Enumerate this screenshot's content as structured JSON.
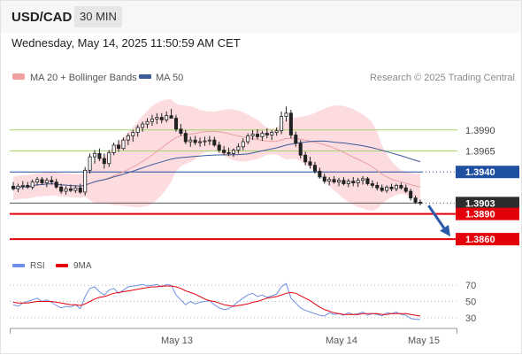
{
  "header": {
    "symbol": "USD/CAD",
    "timeframe": "30 MIN"
  },
  "date_line": "Wednesday, May 14, 2025 11:50:59 AM CET",
  "legend": {
    "bb": "MA 20 + Bollinger Bands",
    "ma50": "MA 50",
    "credit": "Research © 2025 Trading Central"
  },
  "rsi_legend": {
    "rsi": "RSI",
    "ma": "9MA"
  },
  "colors": {
    "bb_fill": "#fcd8dc",
    "ma20": "#e7a0a0",
    "ma50": "#3d5a98",
    "candle": "#222222",
    "green_level": "#a6d26b",
    "blue_level": "#1f4fa0",
    "red_level": "#e3000b",
    "rsi": "#6f8fe6",
    "rsi_ma": "#e3000b",
    "arrow": "#2b5aa6",
    "last_box": "#2d2d2d"
  },
  "chart_data": {
    "type": "candlestick",
    "x_ticks": [
      "May 13",
      "May 14",
      "May 15"
    ],
    "y_range": [
      1.3838,
      1.4033
    ],
    "candles": [
      [
        1.3923,
        1.3928,
        1.3918,
        1.392
      ],
      [
        1.392,
        1.3926,
        1.3916,
        1.3923
      ],
      [
        1.3923,
        1.3929,
        1.3919,
        1.3924
      ],
      [
        1.3924,
        1.3928,
        1.392,
        1.3922
      ],
      [
        1.3922,
        1.3931,
        1.3919,
        1.3928
      ],
      [
        1.3928,
        1.3934,
        1.3924,
        1.3931
      ],
      [
        1.3931,
        1.3934,
        1.3925,
        1.3927
      ],
      [
        1.3927,
        1.3933,
        1.3922,
        1.393
      ],
      [
        1.393,
        1.3935,
        1.3925,
        1.3928
      ],
      [
        1.3928,
        1.3932,
        1.392,
        1.3922
      ],
      [
        1.3922,
        1.3926,
        1.3914,
        1.3917
      ],
      [
        1.3917,
        1.3923,
        1.3913,
        1.392
      ],
      [
        1.392,
        1.3925,
        1.3916,
        1.3918
      ],
      [
        1.3918,
        1.3924,
        1.3915,
        1.3921
      ],
      [
        1.3921,
        1.3926,
        1.3914,
        1.3916
      ],
      [
        1.3916,
        1.3946,
        1.3912,
        1.3942
      ],
      [
        1.3942,
        1.3962,
        1.3938,
        1.3958
      ],
      [
        1.3958,
        1.3966,
        1.395,
        1.3962
      ],
      [
        1.3962,
        1.3968,
        1.3953,
        1.3956
      ],
      [
        1.3956,
        1.3962,
        1.3944,
        1.395
      ],
      [
        1.395,
        1.3966,
        1.3946,
        1.3963
      ],
      [
        1.3963,
        1.3975,
        1.396,
        1.3972
      ],
      [
        1.3972,
        1.3978,
        1.3964,
        1.3968
      ],
      [
        1.3968,
        1.3981,
        1.3966,
        1.3978
      ],
      [
        1.3978,
        1.3986,
        1.3972,
        1.3983
      ],
      [
        1.3983,
        1.399,
        1.3976,
        1.3987
      ],
      [
        1.3987,
        1.3996,
        1.3982,
        1.3993
      ],
      [
        1.3993,
        1.4,
        1.3988,
        1.3997
      ],
      [
        1.3997,
        1.4004,
        1.3992,
        1.4
      ],
      [
        1.4,
        1.4008,
        1.3995,
        1.4003
      ],
      [
        1.4003,
        1.401,
        1.3997,
        1.4005
      ],
      [
        1.4005,
        1.401,
        1.3998,
        1.4002
      ],
      [
        1.4002,
        1.4012,
        1.3999,
        1.4007
      ],
      [
        1.4007,
        1.4015,
        1.4004,
        1.4004
      ],
      [
        1.4004,
        1.4008,
        1.3988,
        1.3991
      ],
      [
        1.3991,
        1.3997,
        1.3983,
        1.3986
      ],
      [
        1.3986,
        1.399,
        1.3973,
        1.3976
      ],
      [
        1.3976,
        1.3982,
        1.397,
        1.3978
      ],
      [
        1.3978,
        1.3983,
        1.3972,
        1.3975
      ],
      [
        1.3975,
        1.3981,
        1.397,
        1.3976
      ],
      [
        1.3976,
        1.3982,
        1.3971,
        1.3977
      ],
      [
        1.3977,
        1.3983,
        1.3972,
        1.3978
      ],
      [
        1.3978,
        1.3982,
        1.397,
        1.3972
      ],
      [
        1.3972,
        1.3976,
        1.3963,
        1.3966
      ],
      [
        1.3966,
        1.3971,
        1.396,
        1.3963
      ],
      [
        1.3963,
        1.3969,
        1.3959,
        1.3962
      ],
      [
        1.3962,
        1.3968,
        1.3958,
        1.3966
      ],
      [
        1.3966,
        1.3974,
        1.3962,
        1.397
      ],
      [
        1.397,
        1.398,
        1.3966,
        1.3976
      ],
      [
        1.3976,
        1.3986,
        1.3973,
        1.3983
      ],
      [
        1.3983,
        1.399,
        1.3978,
        1.3985
      ],
      [
        1.3985,
        1.3991,
        1.3979,
        1.3982
      ],
      [
        1.3982,
        1.3989,
        1.3977,
        1.3986
      ],
      [
        1.3986,
        1.3992,
        1.398,
        1.3984
      ],
      [
        1.3984,
        1.399,
        1.3978,
        1.3987
      ],
      [
        1.3987,
        1.3993,
        1.3983,
        1.3989
      ],
      [
        1.3989,
        1.4012,
        1.3985,
        1.4006
      ],
      [
        1.4006,
        1.4018,
        1.4,
        1.401
      ],
      [
        1.401,
        1.4014,
        1.398,
        1.3984
      ],
      [
        1.3984,
        1.3988,
        1.397,
        1.3974
      ],
      [
        1.3974,
        1.3978,
        1.3956,
        1.396
      ],
      [
        1.396,
        1.3964,
        1.3948,
        1.3952
      ],
      [
        1.3952,
        1.3958,
        1.3944,
        1.3948
      ],
      [
        1.3948,
        1.3952,
        1.3938,
        1.3941
      ],
      [
        1.3941,
        1.3945,
        1.3932,
        1.3934
      ],
      [
        1.3934,
        1.3938,
        1.3926,
        1.3929
      ],
      [
        1.3929,
        1.3934,
        1.3924,
        1.3931
      ],
      [
        1.3931,
        1.3935,
        1.3926,
        1.3928
      ],
      [
        1.3928,
        1.3933,
        1.3923,
        1.393
      ],
      [
        1.393,
        1.3934,
        1.3924,
        1.3926
      ],
      [
        1.3926,
        1.3932,
        1.3922,
        1.3929
      ],
      [
        1.3929,
        1.3934,
        1.3923,
        1.3927
      ],
      [
        1.3927,
        1.3933,
        1.3922,
        1.393
      ],
      [
        1.393,
        1.3935,
        1.3925,
        1.3932
      ],
      [
        1.3932,
        1.3934,
        1.3924,
        1.3926
      ],
      [
        1.3926,
        1.393,
        1.3921,
        1.3924
      ],
      [
        1.3924,
        1.3928,
        1.3918,
        1.3921
      ],
      [
        1.3921,
        1.3925,
        1.3916,
        1.3918
      ],
      [
        1.3918,
        1.3924,
        1.3915,
        1.3922
      ],
      [
        1.3922,
        1.3926,
        1.3917,
        1.392
      ],
      [
        1.392,
        1.3926,
        1.3917,
        1.3924
      ],
      [
        1.3924,
        1.3927,
        1.3919,
        1.3921
      ],
      [
        1.3921,
        1.3925,
        1.3915,
        1.3917
      ],
      [
        1.3917,
        1.392,
        1.3906,
        1.3909
      ],
      [
        1.3909,
        1.3912,
        1.3902,
        1.3904
      ],
      [
        1.3904,
        1.3907,
        1.39,
        1.3903
      ]
    ],
    "levels": [
      {
        "value": 1.399,
        "label": "1.3990",
        "style": "green"
      },
      {
        "value": 1.3965,
        "label": "1.3965",
        "style": "green"
      },
      {
        "value": 1.394,
        "label": "1.3940",
        "style": "blue"
      },
      {
        "value": 1.3903,
        "label": "1.3903",
        "style": "last"
      },
      {
        "value": 1.389,
        "label": "1.3890",
        "style": "red"
      },
      {
        "value": 1.386,
        "label": "1.3860",
        "style": "red"
      }
    ],
    "arrow": {
      "from_candle": 86,
      "from_price": 1.3902,
      "to_price": 1.386
    },
    "rsi": {
      "y_range": [
        20,
        80
      ],
      "ticks": [
        70,
        50,
        30
      ],
      "values": [
        46,
        44,
        48,
        50,
        52,
        54,
        50,
        52,
        49,
        45,
        42,
        44,
        43,
        46,
        41,
        56,
        66,
        68,
        62,
        58,
        64,
        66,
        60,
        64,
        68,
        69,
        70,
        71,
        69,
        70,
        71,
        68,
        71,
        70,
        58,
        52,
        46,
        50,
        47,
        49,
        50,
        51,
        46,
        42,
        40,
        41,
        45,
        50,
        54,
        58,
        60,
        56,
        58,
        55,
        57,
        59,
        68,
        72,
        54,
        48,
        42,
        39,
        37,
        35,
        33,
        32,
        36,
        34,
        35,
        33,
        36,
        34,
        35,
        37,
        33,
        35,
        34,
        32,
        36,
        35,
        37,
        34,
        33,
        29,
        28,
        28
      ],
      "ma": [
        49,
        48,
        48,
        48,
        49,
        50,
        50,
        50,
        50,
        49,
        48,
        47,
        46,
        46,
        45,
        47,
        50,
        53,
        55,
        56,
        58,
        60,
        61,
        62,
        63,
        64,
        65,
        66,
        67,
        68,
        68,
        69,
        69,
        69,
        68,
        66,
        63,
        61,
        59,
        56,
        53,
        51,
        50,
        48,
        46,
        45,
        44,
        45,
        46,
        47,
        49,
        50,
        52,
        54,
        55,
        56,
        58,
        60,
        61,
        60,
        57,
        54,
        51,
        47,
        43,
        40,
        38,
        36,
        35,
        34,
        34,
        34,
        34,
        35,
        35,
        35,
        35,
        34,
        34,
        35,
        35,
        35,
        35,
        34,
        33,
        32
      ]
    }
  }
}
